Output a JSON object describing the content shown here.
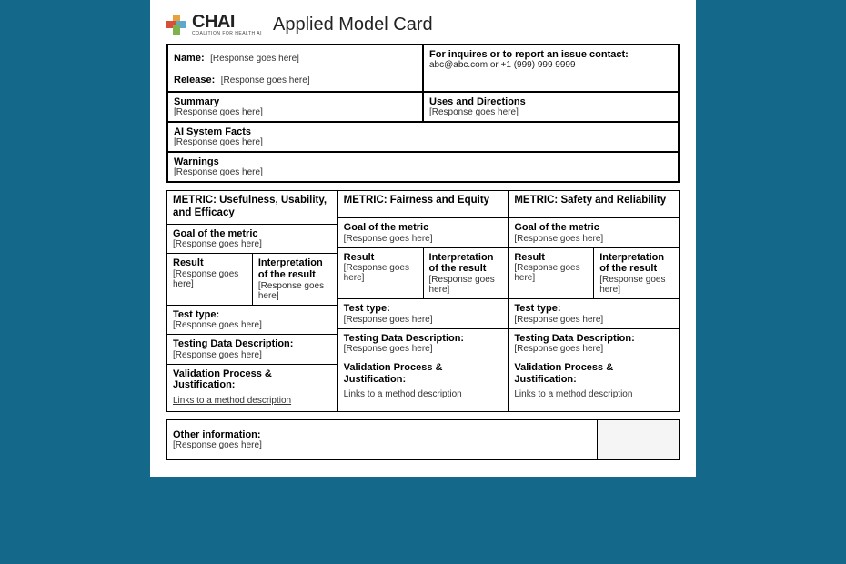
{
  "header": {
    "logo_text": "CHAI",
    "tagline": "COALITION FOR HEALTH AI",
    "title": "Applied Model Card"
  },
  "top": {
    "name_label": "Name:",
    "name_value": "[Response goes here]",
    "release_label": "Release:",
    "release_value": "[Response goes here]",
    "contact_label": "For inquires or to report an issue contact:",
    "contact_value": "abc@abc.com or +1 (999) 999 9999",
    "summary_label": "Summary",
    "summary_value": "[Response goes here]",
    "uses_label": "Uses and Directions",
    "uses_value": "[Response goes here]",
    "facts_label": "AI System Facts",
    "facts_value": "[Response goes here]",
    "warnings_label": "Warnings",
    "warnings_value": "[Response goes here]"
  },
  "metrics": [
    {
      "title": "METRIC: Usefulness, Usability, and Efficacy",
      "goal_label": "Goal of the metric",
      "goal_value": "[Response goes here]",
      "result_label": "Result",
      "result_value": "[Response goes here]",
      "interp_label": "Interpretation of the result",
      "interp_value": "[Response goes here]",
      "test_label": "Test type:",
      "test_value": "[Response goes here]",
      "data_label": "Testing Data Description:",
      "data_value": "[Response goes here]",
      "valid_label": "Validation Process & Justification:",
      "valid_value": "Links to a method description"
    },
    {
      "title": "METRIC: Fairness and Equity",
      "goal_label": "Goal of the metric",
      "goal_value": "[Response goes here]",
      "result_label": "Result",
      "result_value": "[Response goes here]",
      "interp_label": "Interpretation of the result",
      "interp_value": "[Response goes here]",
      "test_label": "Test type:",
      "test_value": "[Response goes here]",
      "data_label": "Testing Data Description:",
      "data_value": "[Response goes here]",
      "valid_label": "Validation Process & Justification:",
      "valid_value": "Links to a method description"
    },
    {
      "title": "METRIC: Safety and Reliability",
      "goal_label": "Goal of the metric",
      "goal_value": "[Response goes here]",
      "result_label": "Result",
      "result_value": "[Response goes here]",
      "interp_label": "Interpretation of the result",
      "interp_value": "[Response goes here]",
      "test_label": "Test type:",
      "test_value": "[Response goes here]",
      "data_label": "Testing Data Description:",
      "data_value": "[Response goes here]",
      "valid_label": "Validation Process & Justification:",
      "valid_value": "Links to a method description"
    }
  ],
  "other": {
    "label": "Other information:",
    "value": "[Response goes here]"
  },
  "colors": {
    "page_bg": "#14698a",
    "card_bg": "#ffffff",
    "border": "#000000",
    "plus_orange": "#e8a23a",
    "plus_red": "#d94e3a",
    "plus_blue": "#5fa8c9",
    "plus_green": "#7fb24c"
  }
}
